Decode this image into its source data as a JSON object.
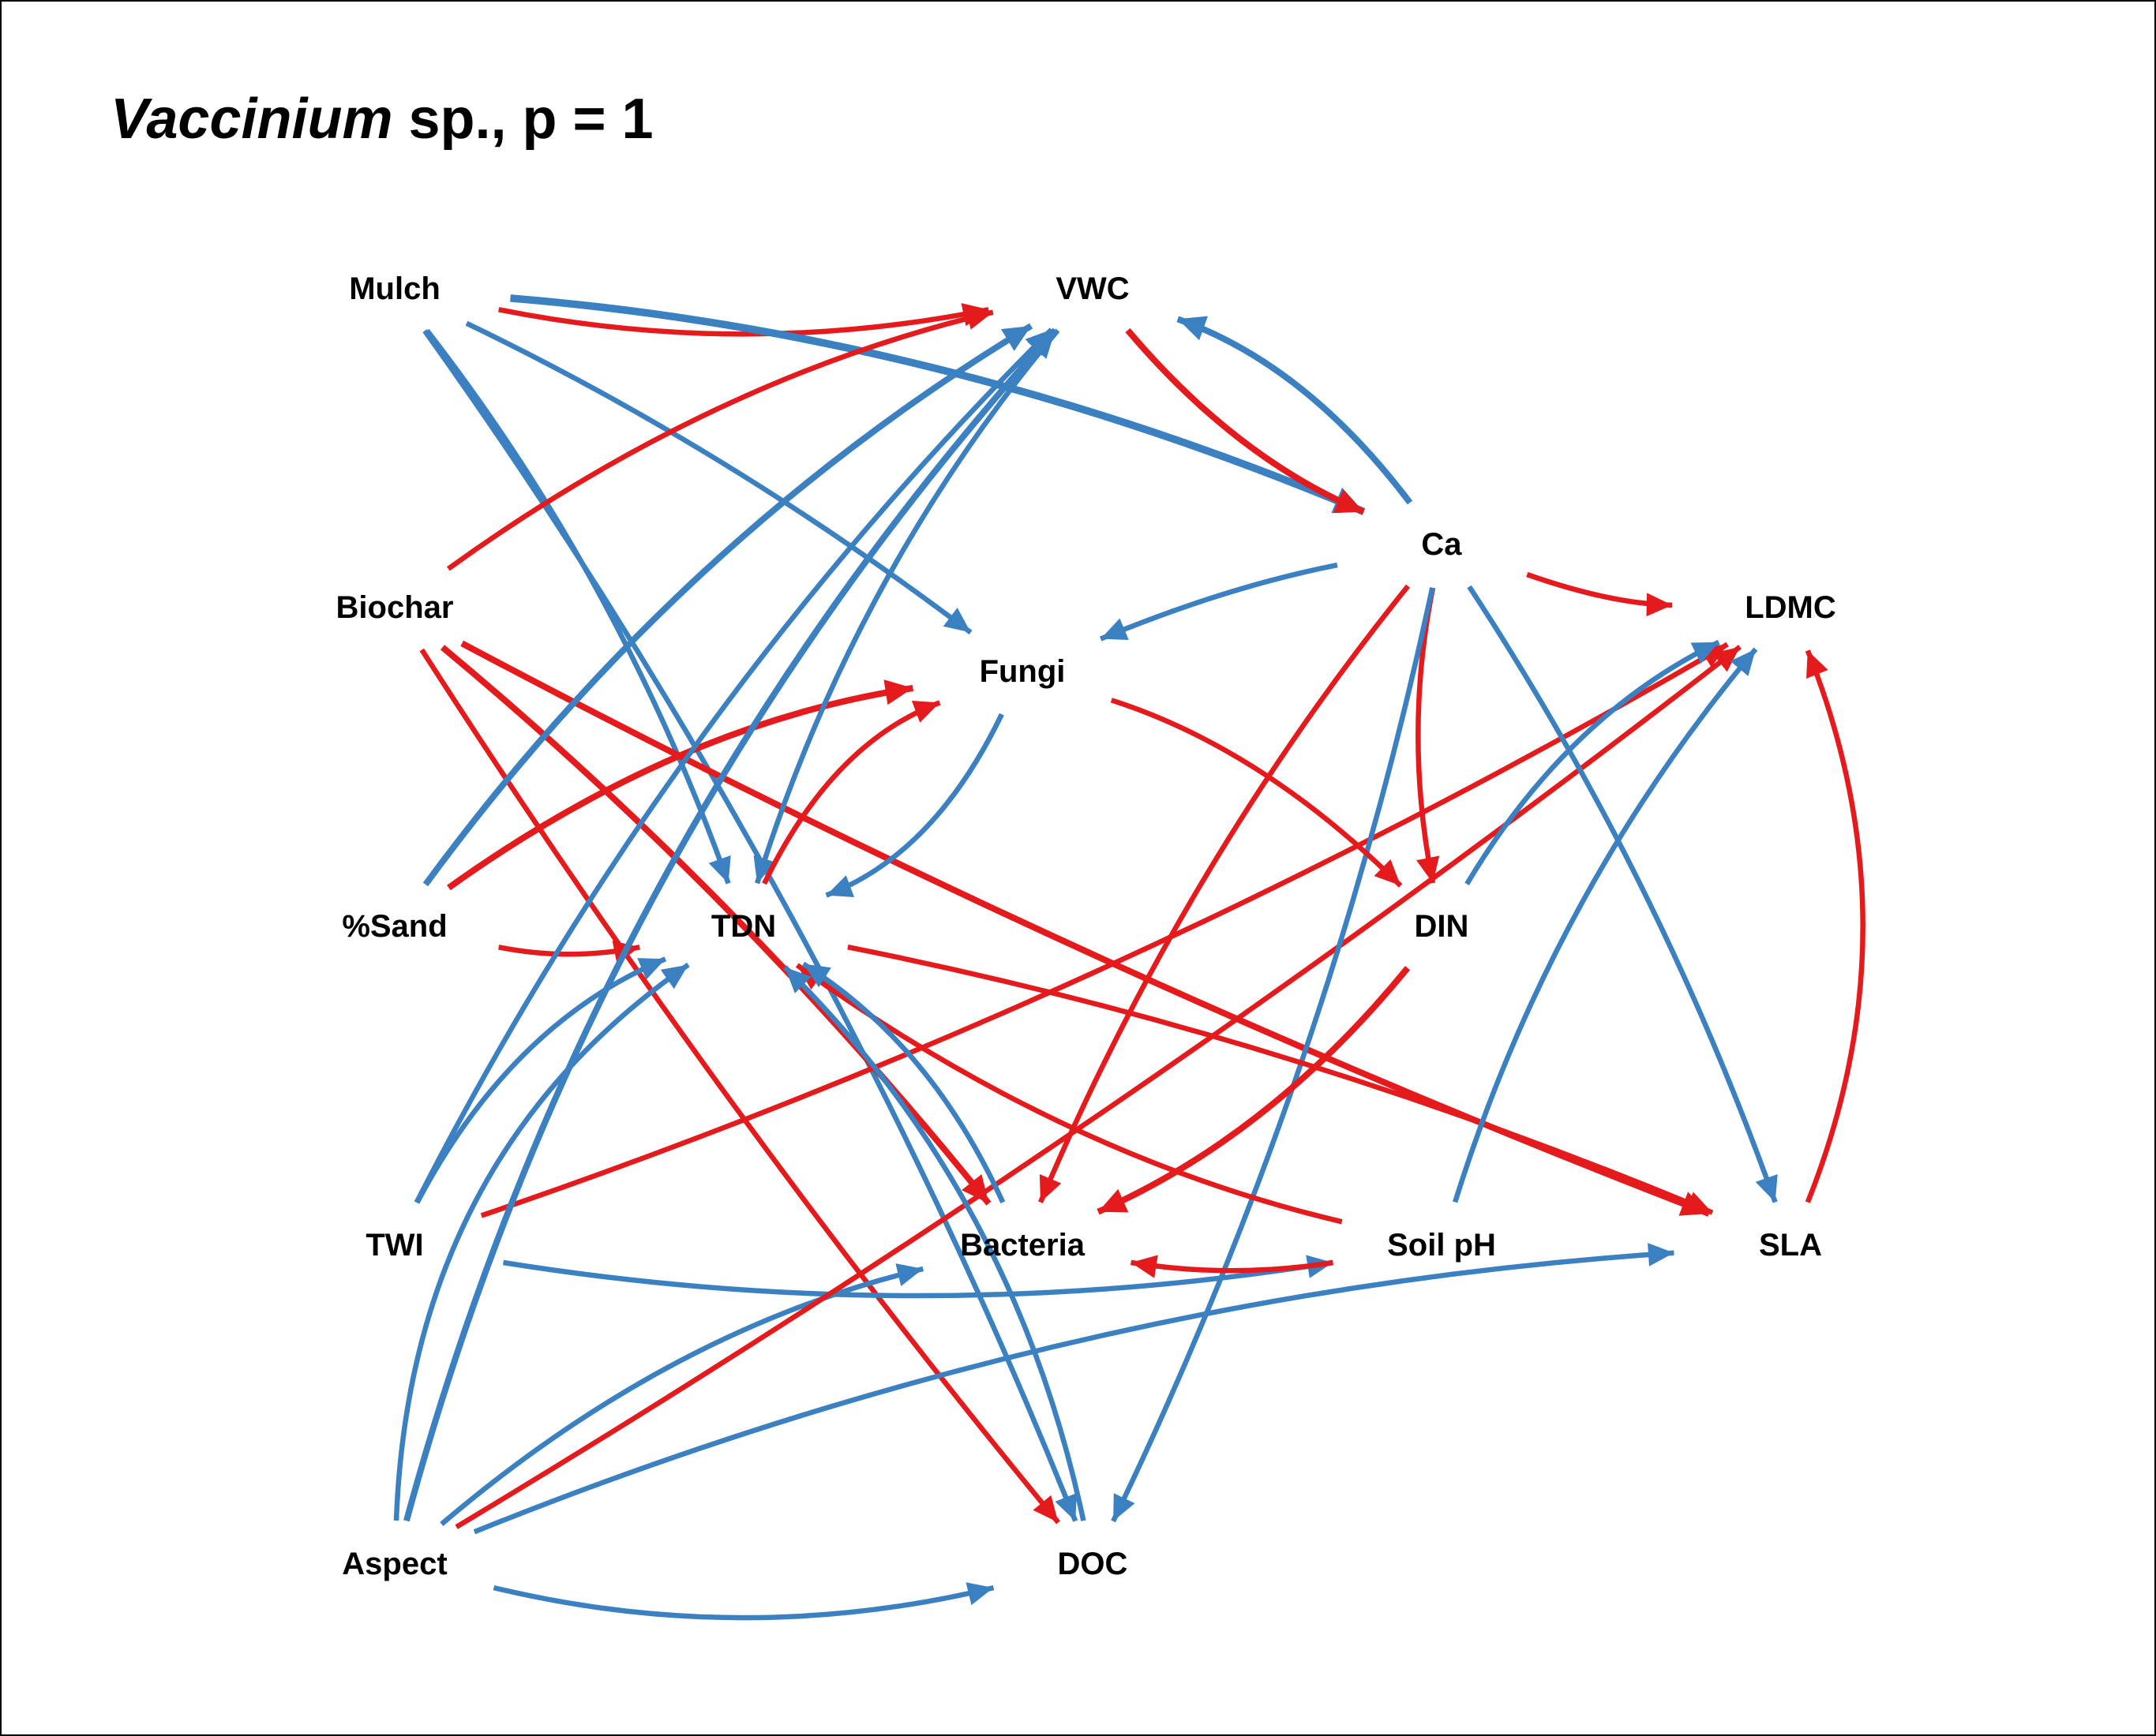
{
  "title": {
    "genus": "Vaccinium",
    "rest": " sp., p = 1"
  },
  "colors": {
    "positive": "#e41a1c",
    "negative": "#3b80c0"
  },
  "nodes": [
    {
      "id": "mulch",
      "label": "Mulch"
    },
    {
      "id": "vwc",
      "label": "VWC"
    },
    {
      "id": "ca",
      "label": "Ca"
    },
    {
      "id": "biochar",
      "label": "Biochar"
    },
    {
      "id": "ldmc",
      "label": "LDMC"
    },
    {
      "id": "fungi",
      "label": "Fungi"
    },
    {
      "id": "sand",
      "label": "%Sand"
    },
    {
      "id": "tdn",
      "label": "TDN"
    },
    {
      "id": "din",
      "label": "DIN"
    },
    {
      "id": "twi",
      "label": "TWI"
    },
    {
      "id": "bacteria",
      "label": "Bacteria"
    },
    {
      "id": "soilph",
      "label": "Soil pH"
    },
    {
      "id": "sla",
      "label": "SLA"
    },
    {
      "id": "aspect",
      "label": "Aspect"
    },
    {
      "id": "doc",
      "label": "DOC"
    }
  ],
  "edges": [
    {
      "from": "mulch",
      "to": "vwc",
      "sign": "positive",
      "weight": 3
    },
    {
      "from": "mulch",
      "to": "ca",
      "sign": "negative",
      "weight": 5
    },
    {
      "from": "mulch",
      "to": "fungi",
      "sign": "negative",
      "weight": 3
    },
    {
      "from": "mulch",
      "to": "tdn",
      "sign": "negative",
      "weight": 3
    },
    {
      "from": "mulch",
      "to": "doc",
      "sign": "negative",
      "weight": 3
    },
    {
      "from": "biochar",
      "to": "vwc",
      "sign": "positive",
      "weight": 3
    },
    {
      "from": "biochar",
      "to": "sla",
      "sign": "positive",
      "weight": 4
    },
    {
      "from": "biochar",
      "to": "bacteria",
      "sign": "positive",
      "weight": 4
    },
    {
      "from": "biochar",
      "to": "doc",
      "sign": "positive",
      "weight": 3
    },
    {
      "from": "sand",
      "to": "vwc",
      "sign": "negative",
      "weight": 4
    },
    {
      "from": "sand",
      "to": "fungi",
      "sign": "positive",
      "weight": 4
    },
    {
      "from": "sand",
      "to": "tdn",
      "sign": "positive",
      "weight": 3
    },
    {
      "from": "twi",
      "to": "vwc",
      "sign": "negative",
      "weight": 3
    },
    {
      "from": "twi",
      "to": "tdn",
      "sign": "negative",
      "weight": 3
    },
    {
      "from": "twi",
      "to": "ldmc",
      "sign": "positive",
      "weight": 3
    },
    {
      "from": "twi",
      "to": "soilph",
      "sign": "negative",
      "weight": 3
    },
    {
      "from": "aspect",
      "to": "vwc",
      "sign": "negative",
      "weight": 4
    },
    {
      "from": "aspect",
      "to": "tdn",
      "sign": "negative",
      "weight": 3
    },
    {
      "from": "aspect",
      "to": "bacteria",
      "sign": "negative",
      "weight": 3
    },
    {
      "from": "aspect",
      "to": "sla",
      "sign": "negative",
      "weight": 3
    },
    {
      "from": "aspect",
      "to": "doc",
      "sign": "negative",
      "weight": 3
    },
    {
      "from": "aspect",
      "to": "ldmc",
      "sign": "positive",
      "weight": 3
    },
    {
      "from": "vwc",
      "to": "ca",
      "sign": "positive",
      "weight": 4
    },
    {
      "from": "ca",
      "to": "vwc",
      "sign": "negative",
      "weight": 4
    },
    {
      "from": "vwc",
      "to": "tdn",
      "sign": "negative",
      "weight": 3
    },
    {
      "from": "ca",
      "to": "ldmc",
      "sign": "positive",
      "weight": 3
    },
    {
      "from": "ca",
      "to": "fungi",
      "sign": "negative",
      "weight": 3
    },
    {
      "from": "ca",
      "to": "din",
      "sign": "positive",
      "weight": 3
    },
    {
      "from": "ca",
      "to": "bacteria",
      "sign": "positive",
      "weight": 3
    },
    {
      "from": "ca",
      "to": "doc",
      "sign": "negative",
      "weight": 3
    },
    {
      "from": "ca",
      "to": "sla",
      "sign": "negative",
      "weight": 3
    },
    {
      "from": "fungi",
      "to": "din",
      "sign": "positive",
      "weight": 3
    },
    {
      "from": "tdn",
      "to": "fungi",
      "sign": "positive",
      "weight": 3
    },
    {
      "from": "fungi",
      "to": "tdn",
      "sign": "negative",
      "weight": 3
    },
    {
      "from": "din",
      "to": "ldmc",
      "sign": "negative",
      "weight": 3
    },
    {
      "from": "din",
      "to": "bacteria",
      "sign": "positive",
      "weight": 4
    },
    {
      "from": "tdn",
      "to": "sla",
      "sign": "positive",
      "weight": 3
    },
    {
      "from": "soilph",
      "to": "tdn",
      "sign": "positive",
      "weight": 3
    },
    {
      "from": "soilph",
      "to": "bacteria",
      "sign": "positive",
      "weight": 3
    },
    {
      "from": "soilph",
      "to": "ldmc",
      "sign": "negative",
      "weight": 3
    },
    {
      "from": "bacteria",
      "to": "tdn",
      "sign": "negative",
      "weight": 3
    },
    {
      "from": "doc",
      "to": "tdn",
      "sign": "negative",
      "weight": 3
    },
    {
      "from": "sla",
      "to": "ldmc",
      "sign": "positive",
      "weight": 3
    }
  ]
}
